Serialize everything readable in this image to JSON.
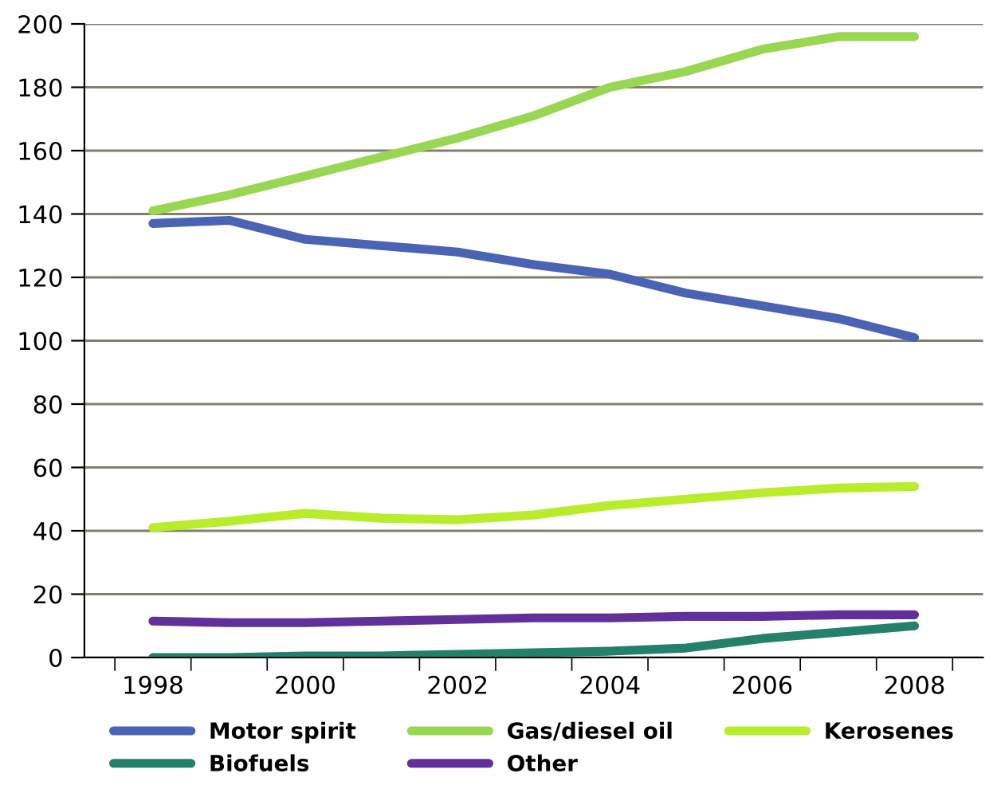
{
  "chart_data": {
    "type": "line",
    "categories": [
      "1998",
      null,
      "2000",
      null,
      "2002",
      null,
      "2004",
      null,
      "2006",
      null,
      "2008"
    ],
    "series": [
      {
        "name": "Motor spirit",
        "color": "#4a63b5",
        "values": [
          137,
          138,
          132,
          130,
          128,
          124,
          121,
          115,
          111,
          107,
          101
        ]
      },
      {
        "name": "Gas/diesel oil",
        "color": "#99d752",
        "values": [
          141,
          146,
          152,
          158,
          164,
          171,
          180,
          185,
          192,
          196,
          196
        ]
      },
      {
        "name": "Kerosenes",
        "color": "#b9ec2a",
        "values": [
          41,
          43,
          45.5,
          44,
          43.5,
          45,
          48,
          50,
          52,
          53.5,
          54
        ]
      },
      {
        "name": "Biofuels",
        "color": "#23806a",
        "values": [
          0,
          0,
          0.5,
          0.5,
          1,
          1.5,
          2,
          3,
          6,
          8,
          10
        ]
      },
      {
        "name": "Other",
        "color": "#62309a",
        "values": [
          11.5,
          11,
          11,
          11.5,
          12,
          12.5,
          12.5,
          13,
          13,
          13.5,
          13.5
        ]
      }
    ],
    "ylim": [
      0,
      200
    ],
    "yticks": [
      0,
      20,
      40,
      60,
      80,
      100,
      120,
      140,
      160,
      180,
      200
    ],
    "grid": "y",
    "legend": "bottom",
    "marker": "none",
    "line_style": "solid"
  }
}
